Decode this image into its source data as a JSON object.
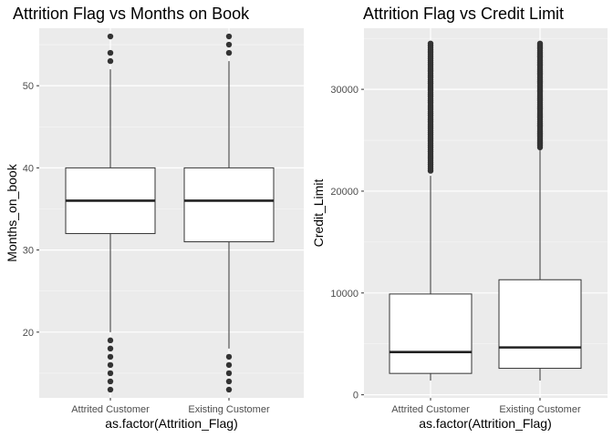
{
  "chart_data": [
    {
      "type": "boxplot",
      "title": "Attrition Flag vs Months on Book",
      "xlabel": "as.factor(Attrition_Flag)",
      "ylabel": "Months_on_book",
      "categories": [
        "Attrited Customer",
        "Existing Customer"
      ],
      "ylim": [
        12,
        57
      ],
      "yticks": [
        20,
        30,
        40,
        50
      ],
      "ytick_labels": [
        "20",
        "30",
        "40",
        "50"
      ],
      "grid": true,
      "boxes": [
        {
          "category": "Attrited Customer",
          "min": 20,
          "q1": 32,
          "median": 36,
          "q3": 40,
          "max": 52,
          "outliers": [
            13,
            14,
            15,
            16,
            17,
            18,
            19,
            53,
            54,
            56
          ]
        },
        {
          "category": "Existing Customer",
          "min": 18,
          "q1": 31,
          "median": 36,
          "q3": 40,
          "max": 53,
          "outliers": [
            13,
            14,
            15,
            16,
            17,
            54,
            55,
            56
          ]
        }
      ]
    },
    {
      "type": "boxplot",
      "title": "Attrition Flag vs Credit Limit",
      "xlabel": "as.factor(Attrition_Flag)",
      "ylabel": "Credit_Limit",
      "categories": [
        "Attrited Customer",
        "Existing Customer"
      ],
      "ylim": [
        -300,
        36000
      ],
      "yticks": [
        0,
        10000,
        20000,
        30000
      ],
      "ytick_labels": [
        "0",
        "10000",
        "20000",
        "30000"
      ],
      "grid": true,
      "boxes": [
        {
          "category": "Attrited Customer",
          "min": 1400,
          "q1": 2100,
          "median": 4200,
          "q3": 9900,
          "max": 21500,
          "outlier_range": [
            22000,
            34500
          ]
        },
        {
          "category": "Existing Customer",
          "min": 1400,
          "q1": 2600,
          "median": 4650,
          "q3": 11300,
          "max": 24200,
          "outlier_range": [
            24300,
            34500
          ]
        }
      ]
    }
  ]
}
